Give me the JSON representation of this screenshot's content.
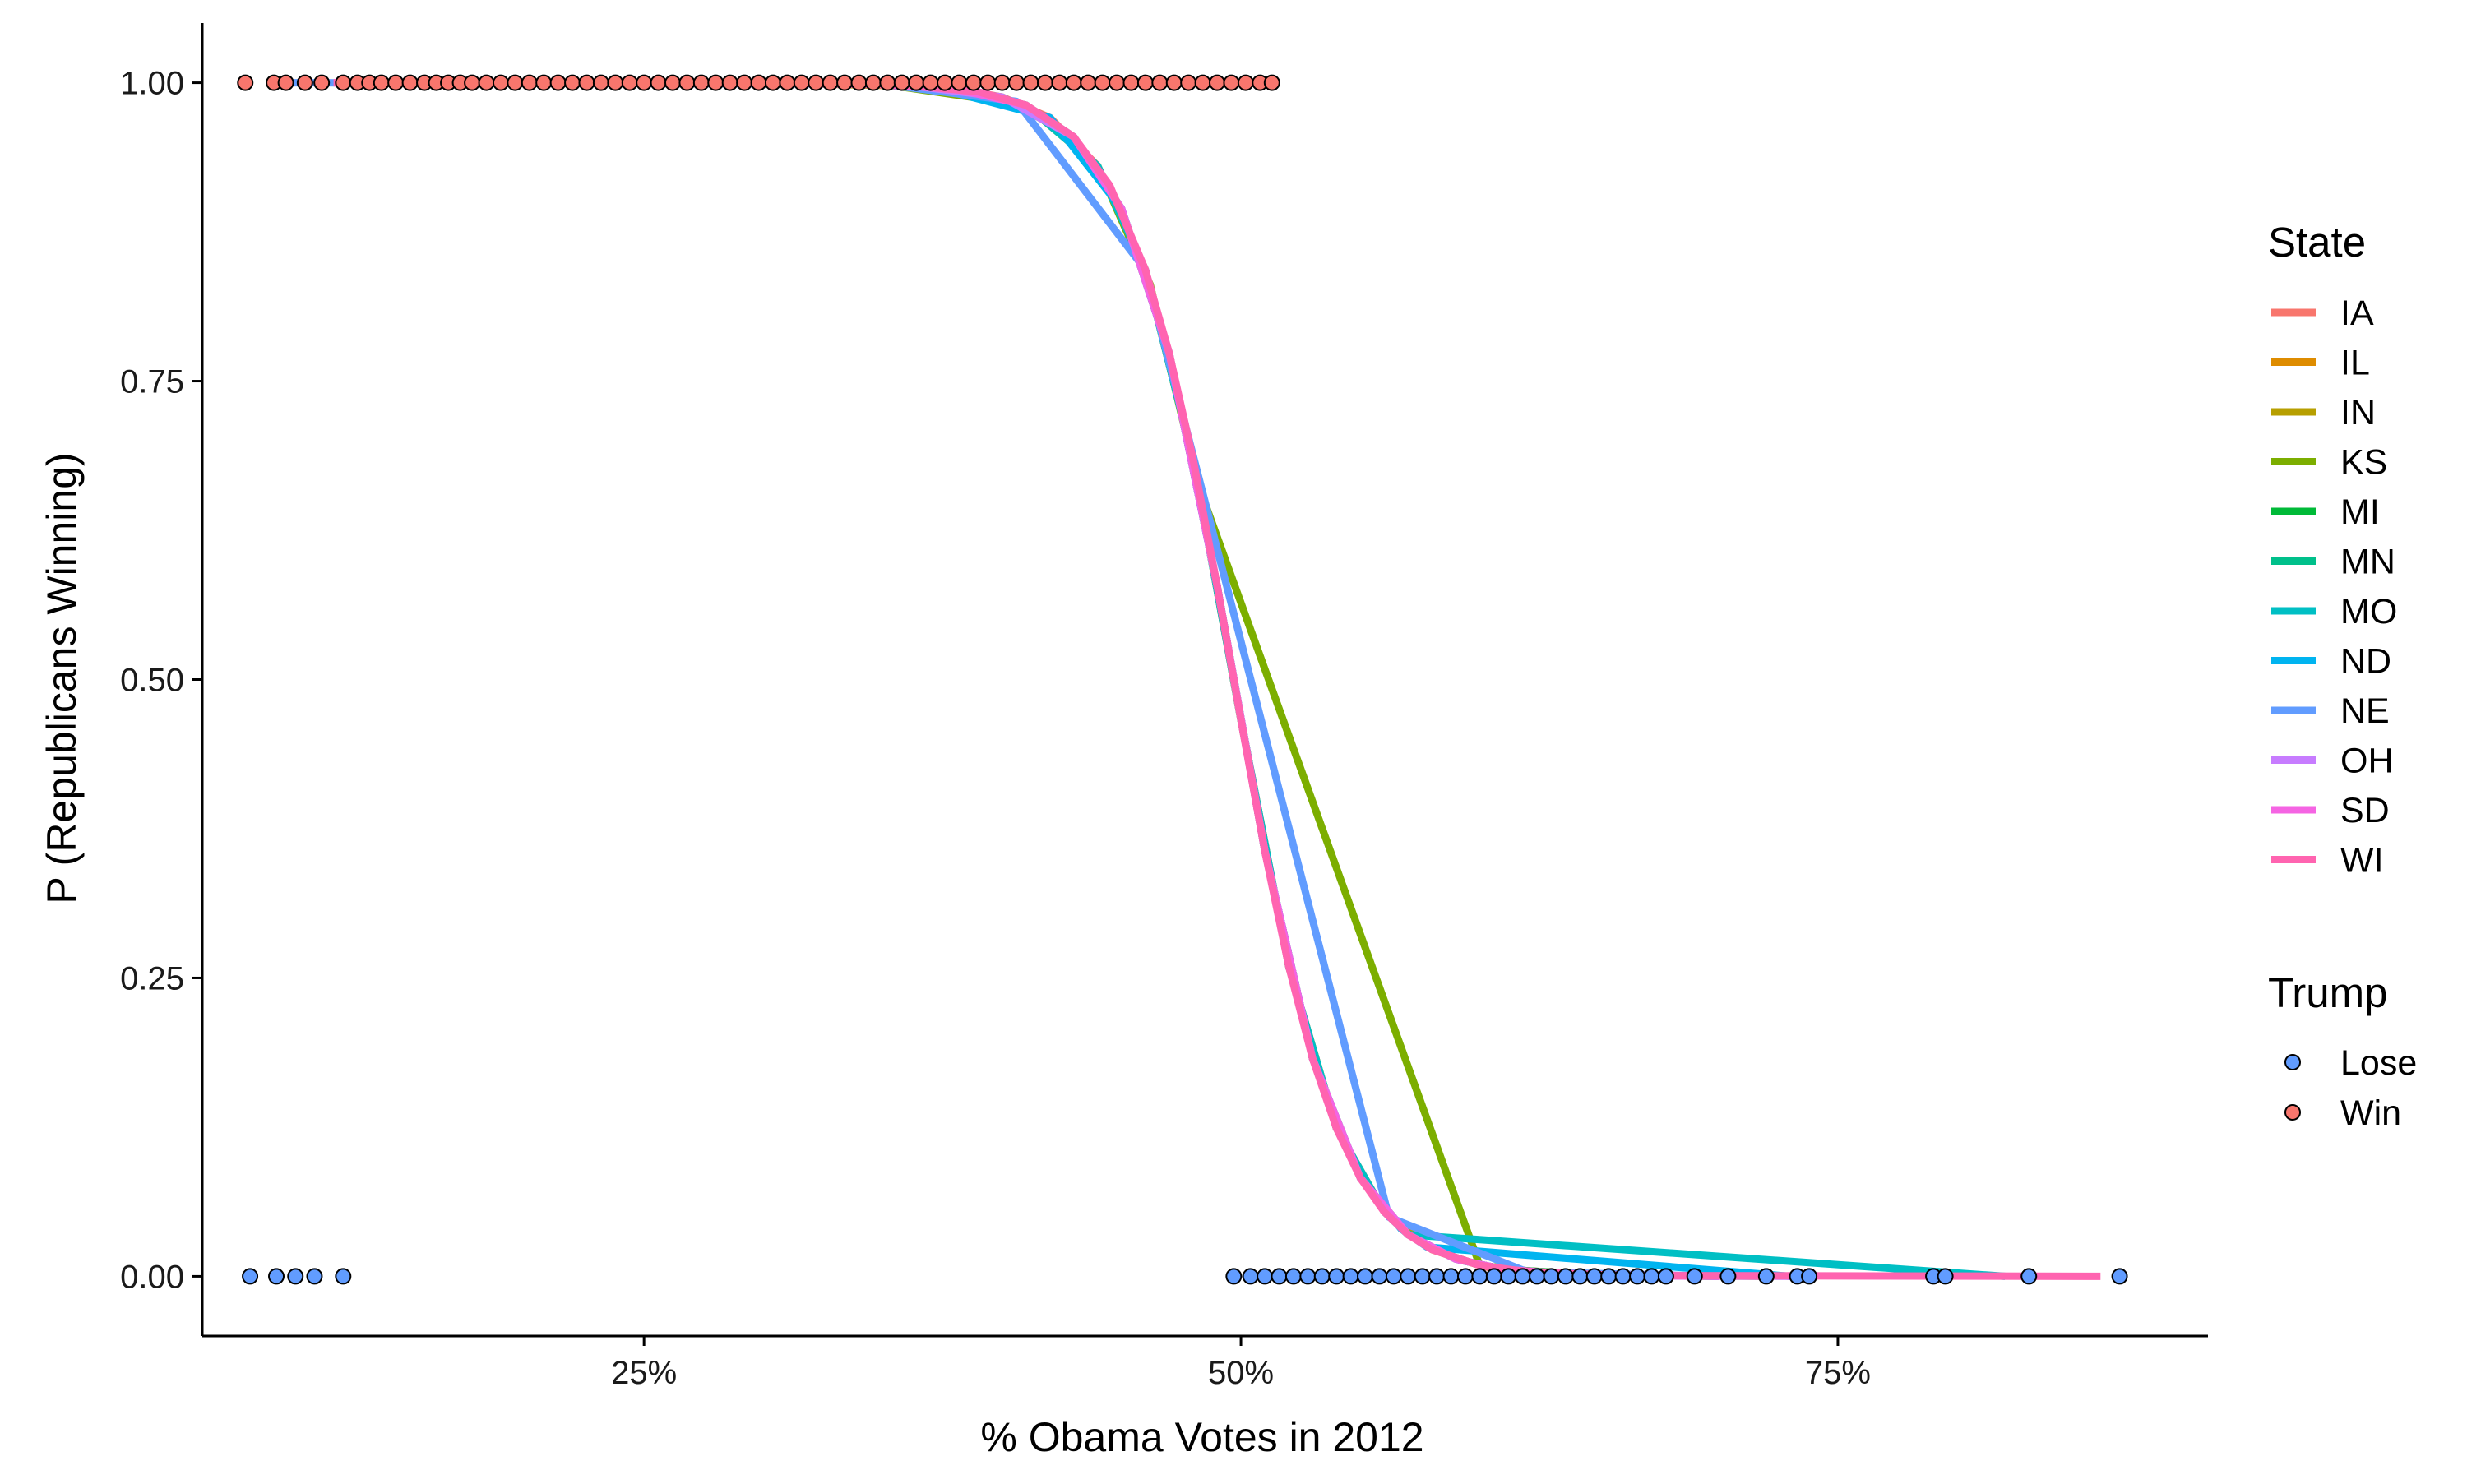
{
  "chart_data": {
    "type": "scatter",
    "title": "",
    "xlabel": "% Obama Votes in 2012",
    "ylabel": "P (Republicans Winning)",
    "xlim": [
      0.065,
      0.905
    ],
    "ylim": [
      -0.05,
      1.05
    ],
    "x_ticks": [
      {
        "value": 0.25,
        "label": "25%"
      },
      {
        "value": 0.5,
        "label": "50%"
      },
      {
        "value": 0.75,
        "label": "75%"
      }
    ],
    "y_ticks": [
      {
        "value": 0.0,
        "label": "0.00"
      },
      {
        "value": 0.25,
        "label": "0.25"
      },
      {
        "value": 0.5,
        "label": "0.50"
      },
      {
        "value": 0.75,
        "label": "0.75"
      },
      {
        "value": 1.0,
        "label": "1.00"
      }
    ],
    "grid": false,
    "legend_position": "right",
    "colors": {
      "axis": "#000000",
      "point_stroke": "#000000",
      "win": "#F8766D",
      "lose": "#619CFF"
    },
    "point_legend": {
      "title": "Trump",
      "items": [
        {
          "label": "Lose",
          "color": "#619CFF"
        },
        {
          "label": "Win",
          "color": "#F8766D"
        }
      ]
    },
    "line_legend": {
      "title": "State",
      "items": [
        {
          "label": "IA",
          "color": "#F8766D"
        },
        {
          "label": "IL",
          "color": "#DE8C00"
        },
        {
          "label": "IN",
          "color": "#B79F00"
        },
        {
          "label": "KS",
          "color": "#7CAE00"
        },
        {
          "label": "MI",
          "color": "#00BA38"
        },
        {
          "label": "MN",
          "color": "#00C08B"
        },
        {
          "label": "MO",
          "color": "#00BFC4"
        },
        {
          "label": "ND",
          "color": "#00B4F0"
        },
        {
          "label": "NE",
          "color": "#619CFF"
        },
        {
          "label": "OH",
          "color": "#C77CFF"
        },
        {
          "label": "SD",
          "color": "#F564E3"
        },
        {
          "label": "WI",
          "color": "#FF64B0"
        }
      ]
    },
    "logistic_fit": {
      "midpoint": 0.497,
      "scale": 0.022
    },
    "series": [
      {
        "name": "IA",
        "color": "#F8766D",
        "x": [
          0.38,
          0.4,
          0.42,
          0.44,
          0.46,
          0.48,
          0.5,
          0.52,
          0.54,
          0.56,
          0.58,
          0.6,
          0.62
        ]
      },
      {
        "name": "IL",
        "color": "#DE8C00",
        "x": [
          0.3,
          0.36,
          0.4,
          0.43,
          0.45,
          0.47,
          0.49,
          0.51,
          0.53,
          0.55,
          0.57,
          0.59,
          0.61,
          0.65,
          0.72
        ]
      },
      {
        "name": "IN",
        "color": "#B79F00",
        "x": [
          0.3,
          0.37,
          0.41,
          0.44,
          0.46,
          0.48,
          0.5,
          0.52,
          0.54,
          0.56,
          0.58,
          0.6,
          0.63,
          0.68
        ]
      },
      {
        "name": "KS",
        "color": "#7CAE00",
        "x": [
          0.35,
          0.41,
          0.44,
          0.462,
          0.482,
          0.6,
          0.64
        ]
      },
      {
        "name": "MI",
        "color": "#00BA38",
        "x": [
          0.38,
          0.41,
          0.43,
          0.45,
          0.47,
          0.49,
          0.51,
          0.53,
          0.55,
          0.57,
          0.59,
          0.61,
          0.65,
          0.7
        ]
      },
      {
        "name": "MN",
        "color": "#00C08B",
        "x": [
          0.4,
          0.43,
          0.45,
          0.47,
          0.49,
          0.51,
          0.53,
          0.55,
          0.57,
          0.59,
          0.61,
          0.64,
          0.68
        ]
      },
      {
        "name": "MO",
        "color": "#00BFC4",
        "x": [
          0.36,
          0.41,
          0.44,
          0.46,
          0.48,
          0.5,
          0.52,
          0.54,
          0.56,
          0.57,
          0.82
        ]
      },
      {
        "name": "ND",
        "color": "#00B4F0",
        "x": [
          0.37,
          0.42,
          0.45,
          0.47,
          0.49,
          0.51,
          0.53,
          0.55,
          0.567,
          0.578,
          0.73
        ]
      },
      {
        "name": "NE",
        "color": "#619CFF",
        "x": [
          0.1,
          0.35,
          0.406,
          0.46,
          0.562,
          0.62,
          0.7
        ]
      },
      {
        "name": "OH",
        "color": "#C77CFF",
        "x": [
          0.3,
          0.36,
          0.4,
          0.43,
          0.45,
          0.47,
          0.49,
          0.51,
          0.53,
          0.55,
          0.57,
          0.59,
          0.61,
          0.63,
          0.67,
          0.74
        ]
      },
      {
        "name": "SD",
        "color": "#F564E3",
        "x": [
          0.12,
          0.34,
          0.38,
          0.41,
          0.43,
          0.45,
          0.47,
          0.49,
          0.51,
          0.53,
          0.55,
          0.57,
          0.59,
          0.61,
          0.64,
          0.7
        ]
      },
      {
        "name": "WI",
        "color": "#FF64B0",
        "x": [
          0.12,
          0.3,
          0.36,
          0.39,
          0.41,
          0.43,
          0.445,
          0.46,
          0.47,
          0.48,
          0.49,
          0.5,
          0.51,
          0.52,
          0.53,
          0.54,
          0.55,
          0.56,
          0.57,
          0.58,
          0.6,
          0.62,
          0.66,
          0.86
        ]
      }
    ],
    "points_win": {
      "y": 1.0,
      "x": [
        0.083,
        0.095,
        0.1,
        0.108,
        0.115,
        0.124,
        0.13,
        0.135,
        0.14,
        0.146,
        0.152,
        0.158,
        0.163,
        0.168,
        0.173,
        0.178,
        0.184,
        0.19,
        0.196,
        0.202,
        0.208,
        0.214,
        0.22,
        0.226,
        0.232,
        0.238,
        0.244,
        0.25,
        0.256,
        0.262,
        0.268,
        0.274,
        0.28,
        0.286,
        0.292,
        0.298,
        0.304,
        0.31,
        0.316,
        0.322,
        0.328,
        0.334,
        0.34,
        0.346,
        0.352,
        0.358,
        0.364,
        0.37,
        0.376,
        0.382,
        0.388,
        0.394,
        0.4,
        0.406,
        0.412,
        0.418,
        0.424,
        0.43,
        0.436,
        0.442,
        0.448,
        0.454,
        0.46,
        0.466,
        0.472,
        0.478,
        0.484,
        0.49,
        0.496,
        0.502,
        0.508,
        0.513
      ]
    },
    "points_lose": {
      "y": 0.0,
      "x": [
        0.085,
        0.096,
        0.104,
        0.112,
        0.124,
        0.497,
        0.504,
        0.51,
        0.516,
        0.522,
        0.528,
        0.534,
        0.54,
        0.546,
        0.552,
        0.558,
        0.564,
        0.57,
        0.576,
        0.582,
        0.588,
        0.594,
        0.6,
        0.606,
        0.612,
        0.618,
        0.624,
        0.63,
        0.636,
        0.642,
        0.648,
        0.654,
        0.66,
        0.666,
        0.672,
        0.678,
        0.69,
        0.704,
        0.72,
        0.733,
        0.738,
        0.79,
        0.795,
        0.83,
        0.868
      ]
    }
  }
}
